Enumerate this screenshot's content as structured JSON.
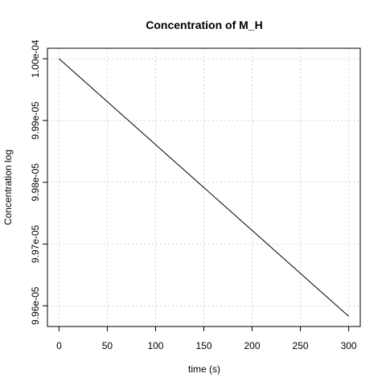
{
  "chart_data": {
    "type": "line",
    "title": "Concentration of M_H",
    "xlabel": "time (s)",
    "ylabel": "Concentration log",
    "xlim": [
      0,
      300
    ],
    "ylim": [
      9.9583e-05,
      0.0001
    ],
    "grid": true,
    "x_ticks": [
      0,
      50,
      100,
      150,
      200,
      250,
      300
    ],
    "x_tick_labels": [
      "0",
      "50",
      "100",
      "150",
      "200",
      "250",
      "300"
    ],
    "y_ticks": [
      9.96e-05,
      9.97e-05,
      9.98e-05,
      9.99e-05,
      0.0001
    ],
    "y_tick_labels": [
      "9.96e-05",
      "9.97e-05",
      "9.98e-05",
      "9.99e-05",
      "1.00e-04"
    ],
    "series": [
      {
        "x": [
          0,
          300
        ],
        "values": [
          0.0001,
          9.9583e-05
        ],
        "color": "#000000"
      }
    ]
  }
}
